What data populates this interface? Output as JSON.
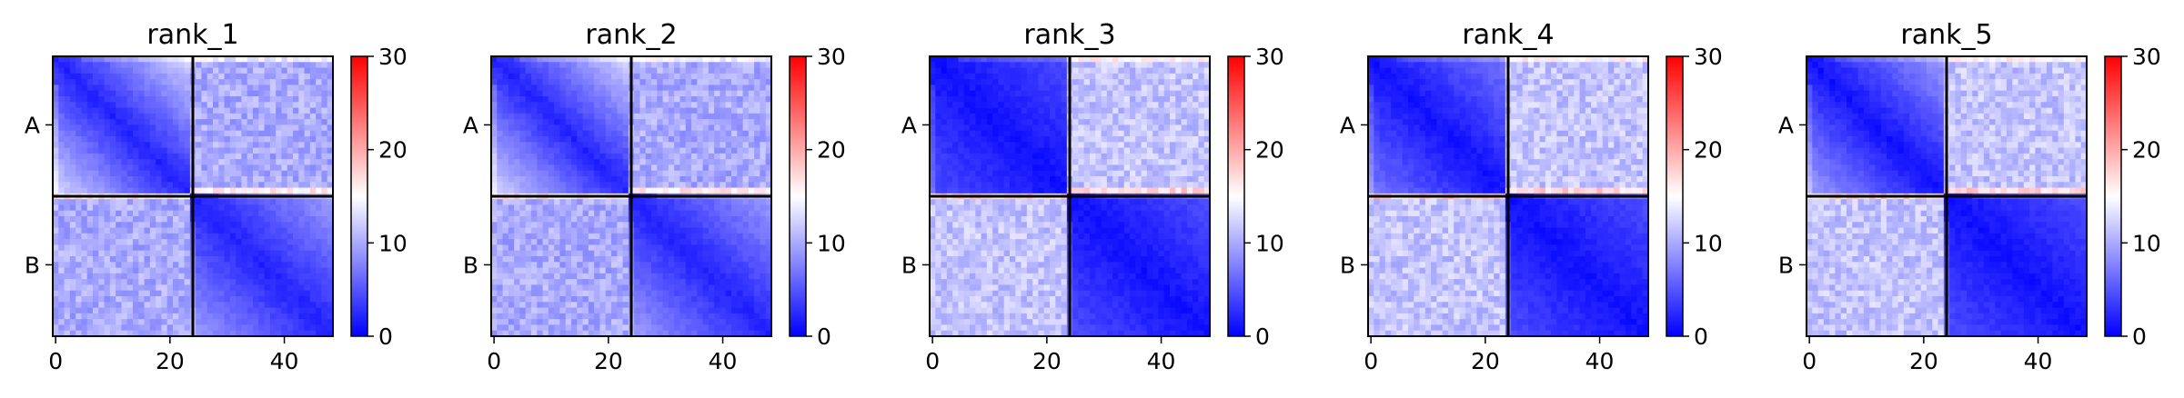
{
  "chart_data": {
    "type": "heatmap",
    "matrix_size": 49,
    "chain_break": 24,
    "colormap": [
      "#0000ff",
      "#ffffff",
      "#ff0000"
    ],
    "colorbar": {
      "min": 0,
      "max": 30,
      "ticks": [
        "0",
        "10",
        "20",
        "30"
      ]
    },
    "x_ticks": [
      "0",
      "20",
      "40"
    ],
    "x_tick_values": [
      0,
      20,
      40
    ],
    "y_tick_labels": [
      "A",
      "B"
    ],
    "panels": [
      {
        "title": "rank_1",
        "diag_min": 2,
        "inter_base": 10,
        "a_fade": 0.45,
        "b_fade": 0.3
      },
      {
        "title": "rank_2",
        "diag_min": 2,
        "inter_base": 10,
        "a_fade": 0.45,
        "b_fade": 0.3
      },
      {
        "title": "rank_3",
        "diag_min": 1,
        "inter_base": 11.5,
        "a_fade": 0.15,
        "b_fade": 0.15
      },
      {
        "title": "rank_4",
        "diag_min": 1,
        "inter_base": 11.5,
        "a_fade": 0.25,
        "b_fade": 0.15
      },
      {
        "title": "rank_5",
        "diag_min": 1,
        "inter_base": 11.5,
        "a_fade": 0.35,
        "b_fade": 0.15
      }
    ]
  }
}
